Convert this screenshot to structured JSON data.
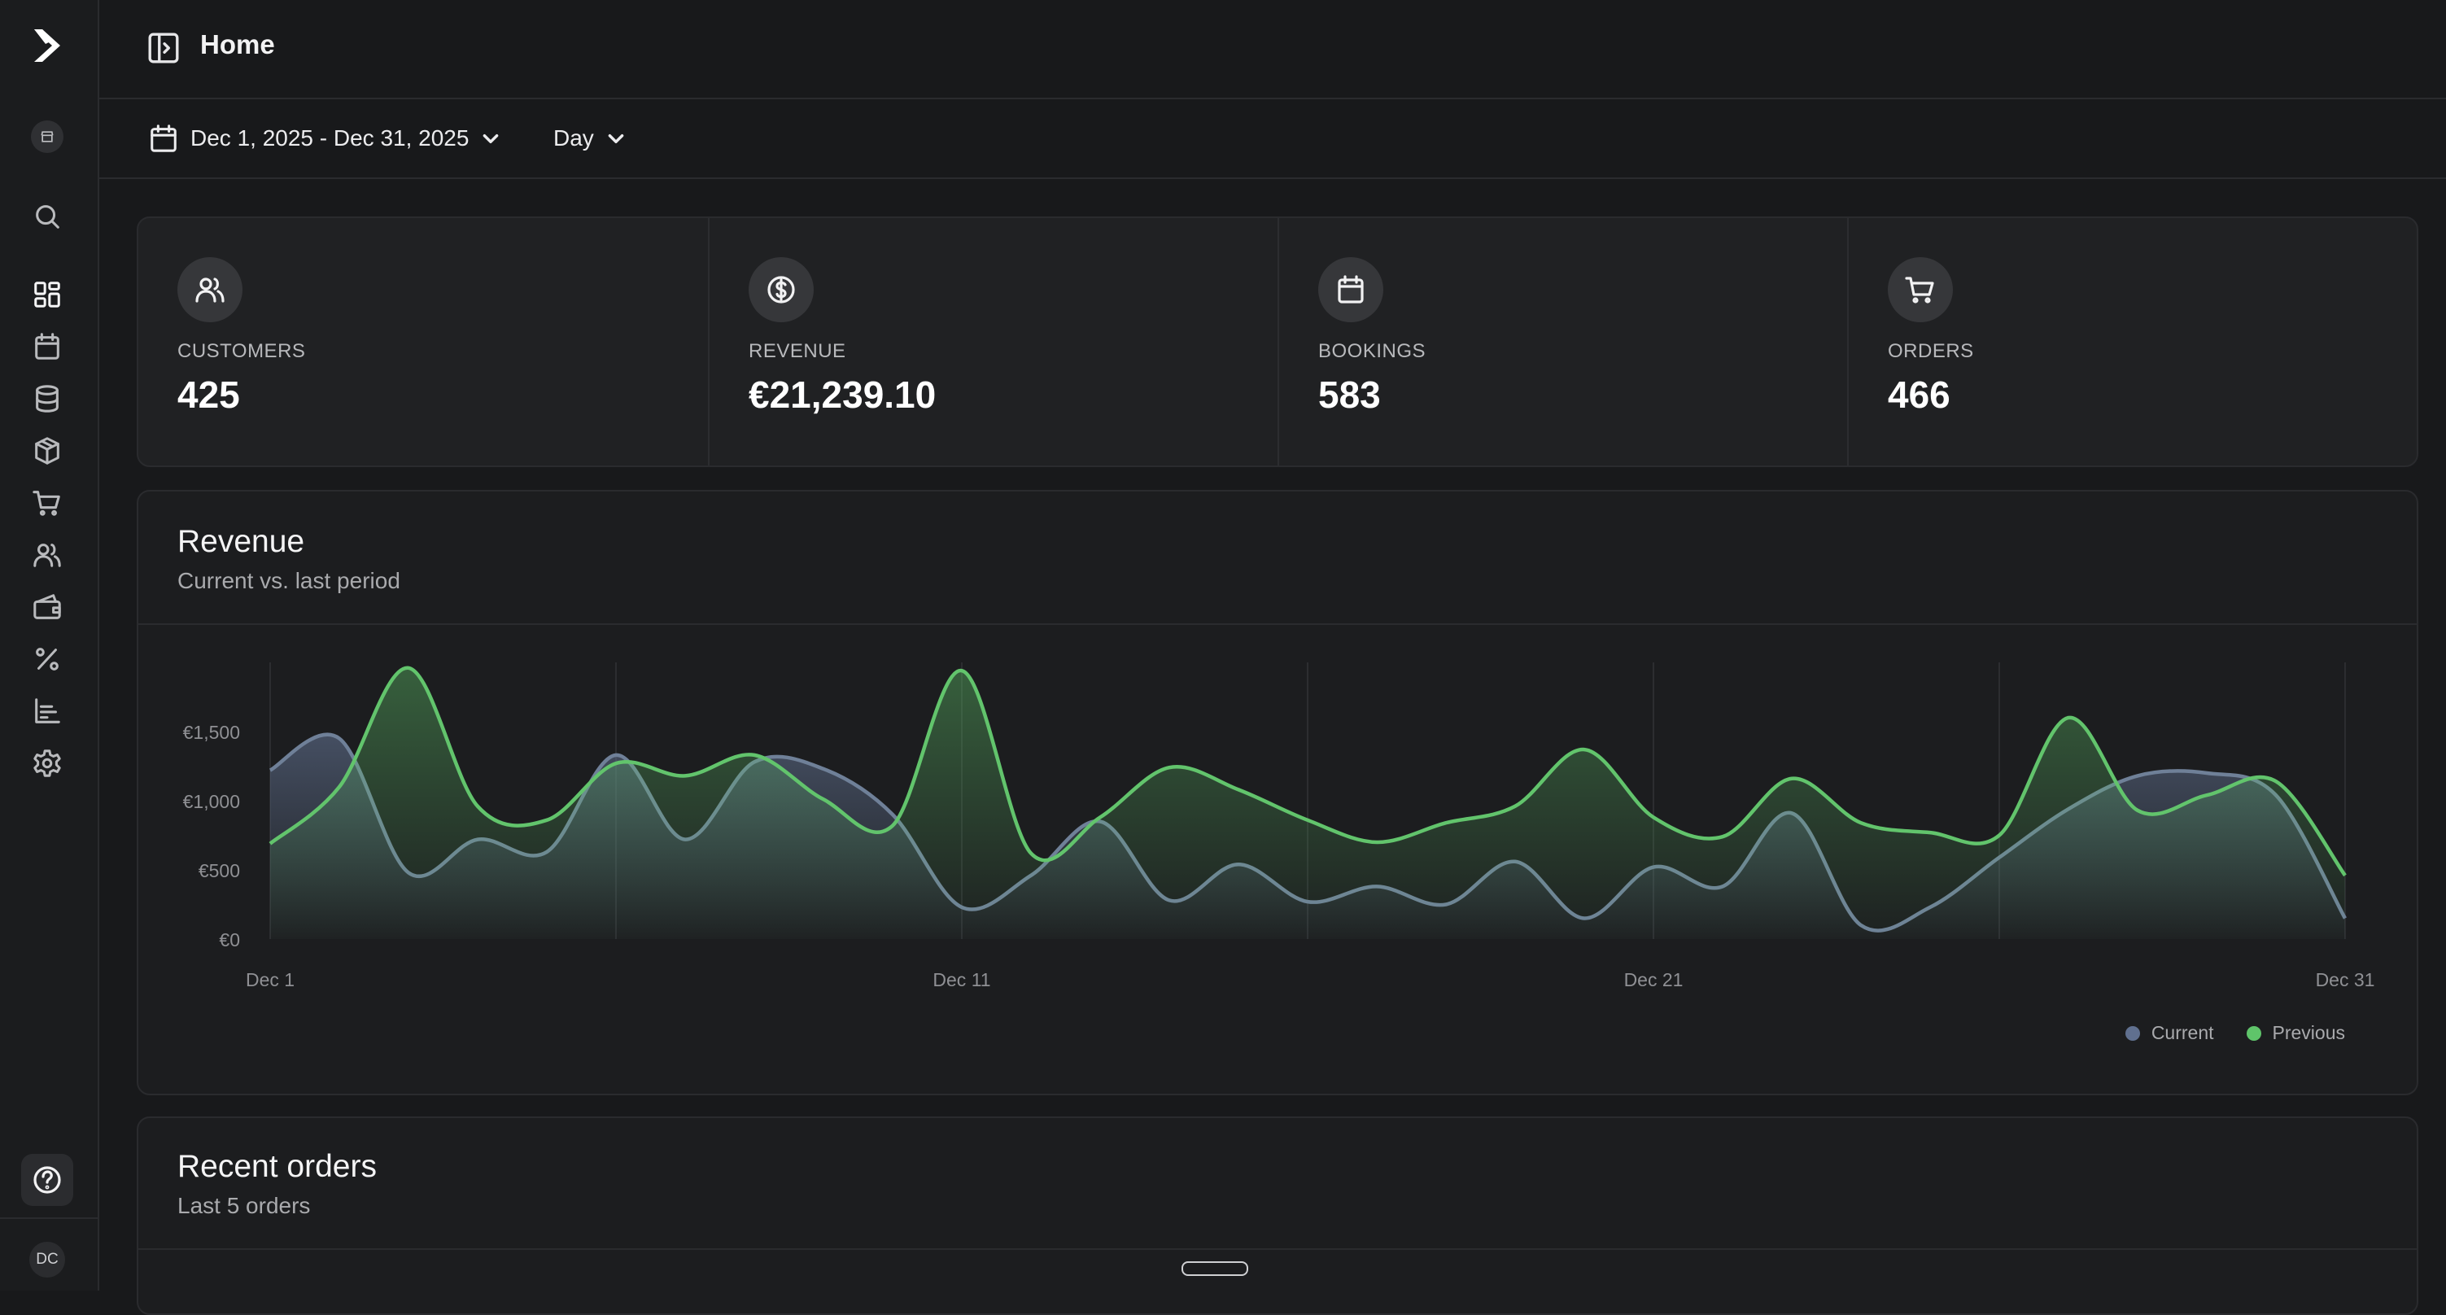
{
  "page": {
    "title": "Home"
  },
  "sidebar": {
    "items": [
      {
        "name": "search",
        "icon": "search-icon"
      },
      {
        "name": "dashboard",
        "icon": "dashboard-icon"
      },
      {
        "name": "calendar",
        "icon": "calendar-icon"
      },
      {
        "name": "database",
        "icon": "database-icon"
      },
      {
        "name": "products",
        "icon": "box-icon"
      },
      {
        "name": "orders",
        "icon": "cart-icon"
      },
      {
        "name": "customers",
        "icon": "users-icon"
      },
      {
        "name": "wallet",
        "icon": "wallet-icon"
      },
      {
        "name": "discounts",
        "icon": "percent-icon"
      },
      {
        "name": "reports",
        "icon": "bar-chart-icon"
      },
      {
        "name": "settings",
        "icon": "gear-icon"
      }
    ],
    "avatar_initials": "DC"
  },
  "filters": {
    "date_range": "Dec 1, 2025 - Dec 31, 2025",
    "granularity": "Day"
  },
  "stats": [
    {
      "label": "CUSTOMERS",
      "value": "425",
      "icon": "users-icon"
    },
    {
      "label": "REVENUE",
      "value": "€21,239.10",
      "icon": "dollar-circle-icon"
    },
    {
      "label": "BOOKINGS",
      "value": "583",
      "icon": "calendar-icon"
    },
    {
      "label": "ORDERS",
      "value": "466",
      "icon": "cart-icon"
    }
  ],
  "revenue_card": {
    "title": "Revenue",
    "subtitle": "Current vs. last period"
  },
  "recent_orders": {
    "title": "Recent orders",
    "subtitle": "Last 5 orders"
  },
  "colors": {
    "current": "#60708f",
    "previous": "#5fc46a",
    "background": "#18191b"
  },
  "chart_data": {
    "type": "area",
    "x": [
      "Dec 1",
      "Dec 2",
      "Dec 3",
      "Dec 4",
      "Dec 5",
      "Dec 6",
      "Dec 7",
      "Dec 8",
      "Dec 9",
      "Dec 10",
      "Dec 11",
      "Dec 12",
      "Dec 13",
      "Dec 14",
      "Dec 15",
      "Dec 16",
      "Dec 17",
      "Dec 18",
      "Dec 19",
      "Dec 20",
      "Dec 21",
      "Dec 22",
      "Dec 23",
      "Dec 24",
      "Dec 25",
      "Dec 26",
      "Dec 27",
      "Dec 28",
      "Dec 29",
      "Dec 30",
      "Dec 31"
    ],
    "x_tick_labels": [
      "Dec 1",
      "Dec 11",
      "Dec 21",
      "Dec 31"
    ],
    "series": [
      {
        "name": "Current",
        "values": [
          1220,
          1450,
          480,
          720,
          630,
          1330,
          720,
          1280,
          1230,
          900,
          230,
          460,
          850,
          280,
          540,
          270,
          380,
          250,
          560,
          150,
          520,
          380,
          910,
          100,
          230,
          590,
          940,
          1180,
          1200,
          1040,
          150
        ]
      },
      {
        "name": "Previous",
        "values": [
          690,
          1100,
          1960,
          960,
          860,
          1270,
          1180,
          1330,
          1010,
          820,
          1940,
          620,
          880,
          1240,
          1080,
          860,
          700,
          840,
          960,
          1370,
          880,
          740,
          1160,
          840,
          770,
          750,
          1600,
          930,
          1040,
          1140,
          460
        ]
      }
    ],
    "y_tick_labels": [
      "€0",
      "€500",
      "€1,000",
      "€1,500"
    ],
    "ylim": [
      0,
      2000
    ],
    "grid": "vertical",
    "legend": "bottom-right"
  }
}
